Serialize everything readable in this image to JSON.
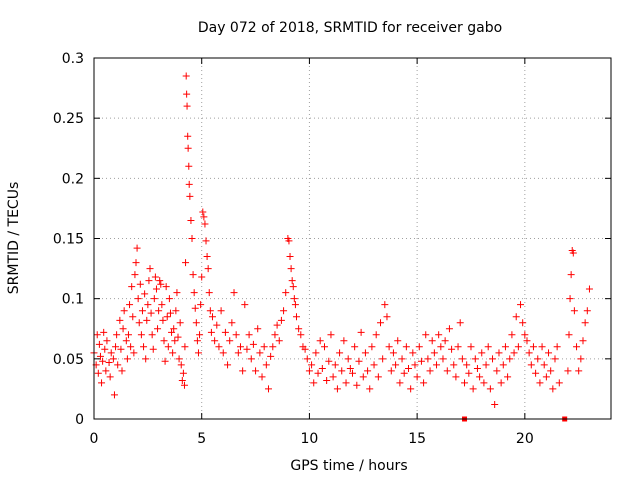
{
  "chart_data": {
    "type": "scatter",
    "title": "Day 072 of 2018, SRMTID for receiver gabo",
    "xlabel": "GPS time / hours",
    "ylabel": "SRMTID / TECUs",
    "xlim": [
      0,
      24
    ],
    "ylim": [
      0,
      0.3
    ],
    "xticks": [
      0,
      5,
      10,
      15,
      20
    ],
    "xtick_labels": [
      "0",
      "5",
      "10",
      "15",
      "20"
    ],
    "yticks": [
      0,
      0.05,
      0.1,
      0.15,
      0.2,
      0.25,
      0.3
    ],
    "ytick_labels": [
      "0",
      "0.05",
      "0.1",
      "0.15",
      "0.2",
      "0.25",
      "0.3"
    ],
    "grid": true,
    "marker": "+",
    "color": "#ff0000",
    "series": [
      {
        "name": "SRMTID",
        "points": [
          [
            0.0,
            0.055
          ],
          [
            0.1,
            0.045
          ],
          [
            0.15,
            0.07
          ],
          [
            0.2,
            0.038
          ],
          [
            0.25,
            0.062
          ],
          [
            0.3,
            0.052
          ],
          [
            0.35,
            0.03
          ],
          [
            0.4,
            0.048
          ],
          [
            0.45,
            0.072
          ],
          [
            0.5,
            0.058
          ],
          [
            0.55,
            0.04
          ],
          [
            0.6,
            0.065
          ],
          [
            0.7,
            0.047
          ],
          [
            0.75,
            0.035
          ],
          [
            0.8,
            0.055
          ],
          [
            0.9,
            0.05
          ],
          [
            0.95,
            0.02
          ],
          [
            1.0,
            0.06
          ],
          [
            1.05,
            0.07
          ],
          [
            1.1,
            0.045
          ],
          [
            1.2,
            0.082
          ],
          [
            1.25,
            0.058
          ],
          [
            1.3,
            0.04
          ],
          [
            1.35,
            0.075
          ],
          [
            1.4,
            0.09
          ],
          [
            1.5,
            0.065
          ],
          [
            1.55,
            0.05
          ],
          [
            1.6,
            0.07
          ],
          [
            1.65,
            0.095
          ],
          [
            1.7,
            0.06
          ],
          [
            1.75,
            0.11
          ],
          [
            1.8,
            0.085
          ],
          [
            1.85,
            0.055
          ],
          [
            1.9,
            0.12
          ],
          [
            1.95,
            0.13
          ],
          [
            2.0,
            0.142
          ],
          [
            2.05,
            0.1
          ],
          [
            2.1,
            0.08
          ],
          [
            2.15,
            0.112
          ],
          [
            2.2,
            0.07
          ],
          [
            2.25,
            0.09
          ],
          [
            2.3,
            0.06
          ],
          [
            2.35,
            0.104
          ],
          [
            2.4,
            0.05
          ],
          [
            2.45,
            0.082
          ],
          [
            2.5,
            0.095
          ],
          [
            2.55,
            0.115
          ],
          [
            2.6,
            0.125
          ],
          [
            2.65,
            0.088
          ],
          [
            2.7,
            0.07
          ],
          [
            2.75,
            0.058
          ],
          [
            2.8,
            0.1
          ],
          [
            2.85,
            0.118
          ],
          [
            2.9,
            0.108
          ],
          [
            2.95,
            0.075
          ],
          [
            3.0,
            0.09
          ],
          [
            3.05,
            0.115
          ],
          [
            3.1,
            0.112
          ],
          [
            3.15,
            0.095
          ],
          [
            3.2,
            0.082
          ],
          [
            3.25,
            0.065
          ],
          [
            3.3,
            0.048
          ],
          [
            3.35,
            0.11
          ],
          [
            3.4,
            0.085
          ],
          [
            3.45,
            0.06
          ],
          [
            3.5,
            0.1
          ],
          [
            3.55,
            0.088
          ],
          [
            3.6,
            0.072
          ],
          [
            3.65,
            0.055
          ],
          [
            3.7,
            0.075
          ],
          [
            3.75,
            0.065
          ],
          [
            3.8,
            0.09
          ],
          [
            3.85,
            0.105
          ],
          [
            3.9,
            0.068
          ],
          [
            3.95,
            0.05
          ],
          [
            4.0,
            0.08
          ],
          [
            4.05,
            0.045
          ],
          [
            4.1,
            0.032
          ],
          [
            4.15,
            0.038
          ],
          [
            4.2,
            0.028
          ],
          [
            4.22,
            0.06
          ],
          [
            4.25,
            0.13
          ],
          [
            4.28,
            0.285
          ],
          [
            4.3,
            0.27
          ],
          [
            4.32,
            0.26
          ],
          [
            4.35,
            0.235
          ],
          [
            4.37,
            0.225
          ],
          [
            4.4,
            0.21
          ],
          [
            4.42,
            0.195
          ],
          [
            4.45,
            0.185
          ],
          [
            4.5,
            0.165
          ],
          [
            4.55,
            0.15
          ],
          [
            4.6,
            0.12
          ],
          [
            4.65,
            0.105
          ],
          [
            4.7,
            0.092
          ],
          [
            4.75,
            0.08
          ],
          [
            4.8,
            0.065
          ],
          [
            4.85,
            0.055
          ],
          [
            4.9,
            0.07
          ],
          [
            4.95,
            0.095
          ],
          [
            5.0,
            0.118
          ],
          [
            5.05,
            0.172
          ],
          [
            5.1,
            0.168
          ],
          [
            5.15,
            0.162
          ],
          [
            5.2,
            0.148
          ],
          [
            5.25,
            0.135
          ],
          [
            5.3,
            0.125
          ],
          [
            5.35,
            0.105
          ],
          [
            5.4,
            0.09
          ],
          [
            5.45,
            0.072
          ],
          [
            5.5,
            0.085
          ],
          [
            5.6,
            0.065
          ],
          [
            5.7,
            0.078
          ],
          [
            5.8,
            0.06
          ],
          [
            5.9,
            0.09
          ],
          [
            6.0,
            0.055
          ],
          [
            6.1,
            0.072
          ],
          [
            6.2,
            0.045
          ],
          [
            6.3,
            0.065
          ],
          [
            6.4,
            0.08
          ],
          [
            6.5,
            0.105
          ],
          [
            6.6,
            0.07
          ],
          [
            6.7,
            0.055
          ],
          [
            6.8,
            0.06
          ],
          [
            6.9,
            0.04
          ],
          [
            7.0,
            0.095
          ],
          [
            7.1,
            0.058
          ],
          [
            7.2,
            0.07
          ],
          [
            7.3,
            0.05
          ],
          [
            7.4,
            0.062
          ],
          [
            7.5,
            0.04
          ],
          [
            7.6,
            0.075
          ],
          [
            7.7,
            0.055
          ],
          [
            7.8,
            0.035
          ],
          [
            7.9,
            0.06
          ],
          [
            8.0,
            0.045
          ],
          [
            8.1,
            0.025
          ],
          [
            8.2,
            0.052
          ],
          [
            8.3,
            0.06
          ],
          [
            8.4,
            0.07
          ],
          [
            8.5,
            0.078
          ],
          [
            8.6,
            0.065
          ],
          [
            8.7,
            0.082
          ],
          [
            8.8,
            0.09
          ],
          [
            8.9,
            0.105
          ],
          [
            9.0,
            0.15
          ],
          [
            9.05,
            0.148
          ],
          [
            9.1,
            0.135
          ],
          [
            9.15,
            0.125
          ],
          [
            9.2,
            0.115
          ],
          [
            9.25,
            0.11
          ],
          [
            9.3,
            0.1
          ],
          [
            9.35,
            0.095
          ],
          [
            9.4,
            0.085
          ],
          [
            9.5,
            0.075
          ],
          [
            9.6,
            0.07
          ],
          [
            9.7,
            0.06
          ],
          [
            9.8,
            0.058
          ],
          [
            9.9,
            0.05
          ],
          [
            10.0,
            0.04
          ],
          [
            10.1,
            0.045
          ],
          [
            10.2,
            0.03
          ],
          [
            10.3,
            0.055
          ],
          [
            10.4,
            0.038
          ],
          [
            10.5,
            0.065
          ],
          [
            10.6,
            0.042
          ],
          [
            10.7,
            0.06
          ],
          [
            10.8,
            0.032
          ],
          [
            10.9,
            0.048
          ],
          [
            11.0,
            0.07
          ],
          [
            11.1,
            0.035
          ],
          [
            11.2,
            0.045
          ],
          [
            11.3,
            0.025
          ],
          [
            11.4,
            0.055
          ],
          [
            11.5,
            0.04
          ],
          [
            11.6,
            0.065
          ],
          [
            11.7,
            0.03
          ],
          [
            11.8,
            0.05
          ],
          [
            11.9,
            0.042
          ],
          [
            12.0,
            0.038
          ],
          [
            12.1,
            0.06
          ],
          [
            12.2,
            0.028
          ],
          [
            12.3,
            0.048
          ],
          [
            12.4,
            0.072
          ],
          [
            12.5,
            0.035
          ],
          [
            12.6,
            0.055
          ],
          [
            12.7,
            0.04
          ],
          [
            12.8,
            0.025
          ],
          [
            12.9,
            0.06
          ],
          [
            13.0,
            0.045
          ],
          [
            13.1,
            0.07
          ],
          [
            13.2,
            0.035
          ],
          [
            13.3,
            0.08
          ],
          [
            13.4,
            0.05
          ],
          [
            13.5,
            0.095
          ],
          [
            13.6,
            0.085
          ],
          [
            13.7,
            0.06
          ],
          [
            13.8,
            0.04
          ],
          [
            13.9,
            0.055
          ],
          [
            14.0,
            0.045
          ],
          [
            14.1,
            0.065
          ],
          [
            14.2,
            0.03
          ],
          [
            14.3,
            0.05
          ],
          [
            14.4,
            0.038
          ],
          [
            14.5,
            0.06
          ],
          [
            14.6,
            0.042
          ],
          [
            14.7,
            0.025
          ],
          [
            14.8,
            0.055
          ],
          [
            14.9,
            0.045
          ],
          [
            15.0,
            0.035
          ],
          [
            15.1,
            0.06
          ],
          [
            15.2,
            0.048
          ],
          [
            15.3,
            0.03
          ],
          [
            15.4,
            0.07
          ],
          [
            15.5,
            0.05
          ],
          [
            15.6,
            0.04
          ],
          [
            15.7,
            0.065
          ],
          [
            15.8,
            0.055
          ],
          [
            15.9,
            0.045
          ],
          [
            16.0,
            0.07
          ],
          [
            16.1,
            0.06
          ],
          [
            16.2,
            0.05
          ],
          [
            16.3,
            0.065
          ],
          [
            16.4,
            0.04
          ],
          [
            16.5,
            0.075
          ],
          [
            16.6,
            0.058
          ],
          [
            16.7,
            0.045
          ],
          [
            16.8,
            0.035
          ],
          [
            16.9,
            0.06
          ],
          [
            17.0,
            0.08
          ],
          [
            17.1,
            0.05
          ],
          [
            17.2,
            0.03
          ],
          [
            17.3,
            0.045
          ],
          [
            17.4,
            0.038
          ],
          [
            17.5,
            0.06
          ],
          [
            17.6,
            0.025
          ],
          [
            17.7,
            0.05
          ],
          [
            17.8,
            0.042
          ],
          [
            17.9,
            0.035
          ],
          [
            18.0,
            0.055
          ],
          [
            18.1,
            0.03
          ],
          [
            18.2,
            0.045
          ],
          [
            18.3,
            0.06
          ],
          [
            18.4,
            0.025
          ],
          [
            18.5,
            0.05
          ],
          [
            18.6,
            0.012
          ],
          [
            18.7,
            0.04
          ],
          [
            18.8,
            0.055
          ],
          [
            18.9,
            0.03
          ],
          [
            19.0,
            0.045
          ],
          [
            19.1,
            0.06
          ],
          [
            19.2,
            0.035
          ],
          [
            19.3,
            0.05
          ],
          [
            19.4,
            0.07
          ],
          [
            19.5,
            0.055
          ],
          [
            19.6,
            0.085
          ],
          [
            19.7,
            0.06
          ],
          [
            19.8,
            0.095
          ],
          [
            19.9,
            0.08
          ],
          [
            20.0,
            0.07
          ],
          [
            20.1,
            0.065
          ],
          [
            20.2,
            0.055
          ],
          [
            20.3,
            0.045
          ],
          [
            20.4,
            0.06
          ],
          [
            20.5,
            0.038
          ],
          [
            20.6,
            0.05
          ],
          [
            20.7,
            0.03
          ],
          [
            20.8,
            0.06
          ],
          [
            20.9,
            0.045
          ],
          [
            21.0,
            0.035
          ],
          [
            21.1,
            0.055
          ],
          [
            21.2,
            0.04
          ],
          [
            21.3,
            0.025
          ],
          [
            21.4,
            0.05
          ],
          [
            21.5,
            0.06
          ],
          [
            21.6,
            0.03
          ],
          [
            22.0,
            0.04
          ],
          [
            22.05,
            0.07
          ],
          [
            22.1,
            0.1
          ],
          [
            22.15,
            0.12
          ],
          [
            22.2,
            0.14
          ],
          [
            22.25,
            0.138
          ],
          [
            22.3,
            0.09
          ],
          [
            22.4,
            0.06
          ],
          [
            22.5,
            0.04
          ],
          [
            22.6,
            0.05
          ],
          [
            22.7,
            0.065
          ],
          [
            22.8,
            0.08
          ],
          [
            22.9,
            0.09
          ],
          [
            23.0,
            0.108
          ]
        ]
      }
    ],
    "gap_markers": [
      [
        17.2,
        0.0
      ],
      [
        21.85,
        0.0
      ]
    ]
  }
}
